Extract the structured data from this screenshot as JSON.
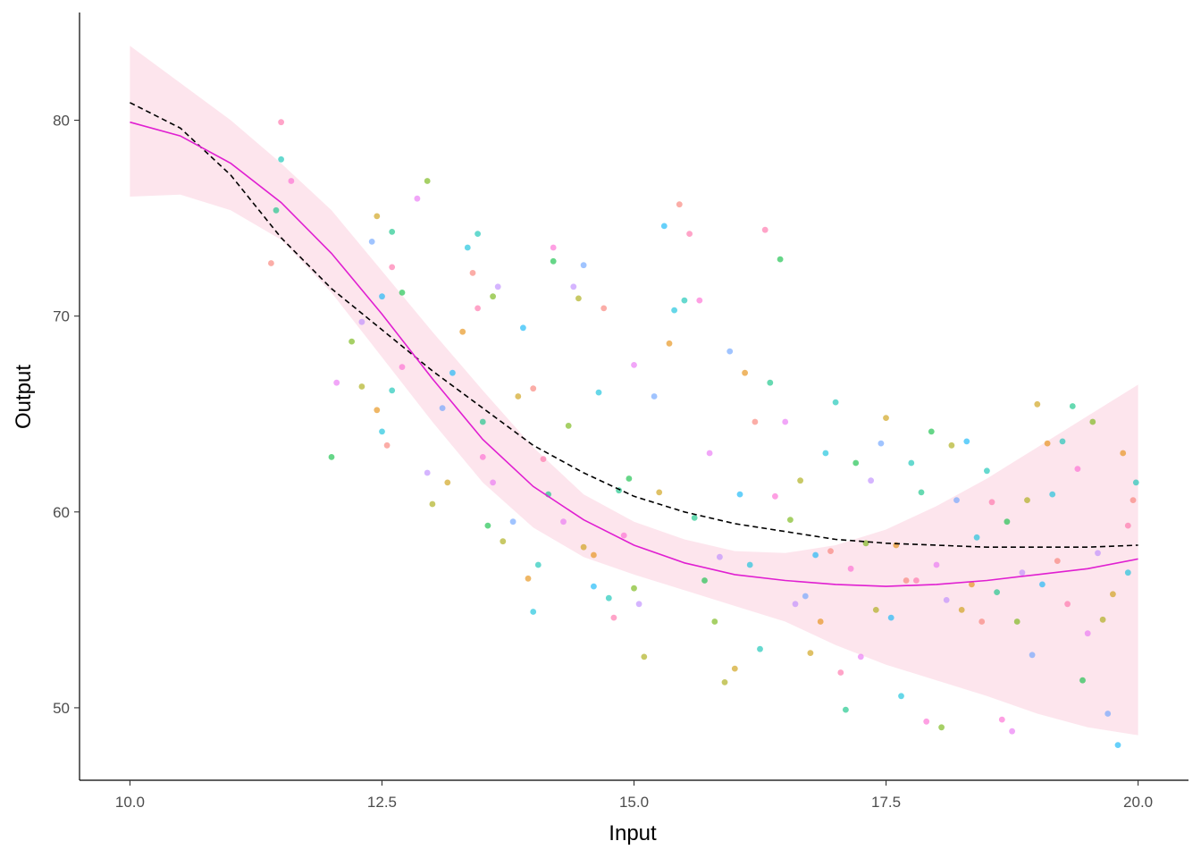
{
  "chart_data": {
    "type": "scatter",
    "title": "",
    "xlabel": "Input",
    "ylabel": "Output",
    "xlim": [
      9.5,
      20.5
    ],
    "ylim": [
      46.3,
      85.5
    ],
    "x_ticks": [
      10.0,
      12.5,
      15.0,
      17.5,
      20.0
    ],
    "x_tick_labels": [
      "10.0",
      "12.5",
      "15.0",
      "17.5",
      "20.0"
    ],
    "y_ticks": [
      50,
      60,
      70,
      80
    ],
    "y_tick_labels": [
      "50",
      "60",
      "70",
      "80"
    ],
    "grid": false,
    "legend": "none",
    "colors": {
      "smooth_line": "#e01fd1",
      "confidence_band": "#fde1ea",
      "reference_line": "#000000",
      "point_palette": [
        "#f8766d",
        "#e58700",
        "#c99800",
        "#a3a500",
        "#6bb100",
        "#00ba38",
        "#00bf7d",
        "#00c0af",
        "#00bcd8",
        "#00b0f6",
        "#619cff",
        "#b983ff",
        "#e76bf3",
        "#fd61d1",
        "#ff67a4"
      ]
    },
    "points_sampled": [
      [
        11.4,
        72.7
      ],
      [
        11.5,
        78.0
      ],
      [
        11.5,
        79.9
      ],
      [
        11.45,
        75.4
      ],
      [
        11.6,
        76.9
      ],
      [
        12.0,
        62.8
      ],
      [
        12.05,
        66.6
      ],
      [
        12.2,
        68.7
      ],
      [
        12.3,
        69.7
      ],
      [
        12.3,
        66.4
      ],
      [
        12.4,
        73.8
      ],
      [
        12.45,
        75.1
      ],
      [
        12.5,
        71.0
      ],
      [
        12.45,
        65.2
      ],
      [
        12.5,
        64.1
      ],
      [
        12.55,
        63.4
      ],
      [
        12.6,
        66.2
      ],
      [
        12.6,
        72.5
      ],
      [
        12.6,
        74.3
      ],
      [
        12.7,
        67.4
      ],
      [
        12.7,
        71.2
      ],
      [
        12.85,
        76.0
      ],
      [
        12.95,
        76.9
      ],
      [
        12.95,
        62.0
      ],
      [
        13.0,
        60.4
      ],
      [
        13.1,
        65.3
      ],
      [
        13.15,
        61.5
      ],
      [
        13.2,
        67.1
      ],
      [
        13.3,
        69.2
      ],
      [
        13.35,
        73.5
      ],
      [
        13.4,
        72.2
      ],
      [
        13.45,
        74.2
      ],
      [
        13.45,
        70.4
      ],
      [
        13.5,
        64.6
      ],
      [
        13.5,
        62.8
      ],
      [
        13.55,
        59.3
      ],
      [
        13.6,
        61.5
      ],
      [
        13.6,
        71.0
      ],
      [
        13.65,
        71.5
      ],
      [
        13.7,
        58.5
      ],
      [
        13.8,
        59.5
      ],
      [
        13.85,
        65.9
      ],
      [
        13.9,
        69.4
      ],
      [
        13.95,
        56.6
      ],
      [
        14.0,
        54.9
      ],
      [
        14.0,
        66.3
      ],
      [
        14.05,
        57.3
      ],
      [
        14.1,
        62.7
      ],
      [
        14.15,
        60.9
      ],
      [
        14.2,
        73.5
      ],
      [
        14.2,
        72.8
      ],
      [
        14.3,
        59.5
      ],
      [
        14.35,
        64.4
      ],
      [
        14.4,
        71.5
      ],
      [
        14.45,
        70.9
      ],
      [
        14.5,
        72.6
      ],
      [
        14.5,
        58.2
      ],
      [
        14.6,
        56.2
      ],
      [
        14.6,
        57.8
      ],
      [
        14.65,
        66.1
      ],
      [
        14.7,
        70.4
      ],
      [
        14.75,
        55.6
      ],
      [
        14.8,
        54.6
      ],
      [
        14.85,
        61.1
      ],
      [
        14.9,
        58.8
      ],
      [
        14.95,
        61.7
      ],
      [
        15.0,
        67.5
      ],
      [
        15.0,
        56.1
      ],
      [
        15.05,
        55.3
      ],
      [
        15.1,
        52.6
      ],
      [
        15.2,
        65.9
      ],
      [
        15.25,
        61.0
      ],
      [
        15.3,
        74.6
      ],
      [
        15.35,
        68.6
      ],
      [
        15.4,
        70.3
      ],
      [
        15.45,
        75.7
      ],
      [
        15.5,
        70.8
      ],
      [
        15.55,
        74.2
      ],
      [
        15.6,
        59.7
      ],
      [
        15.65,
        70.8
      ],
      [
        15.7,
        56.5
      ],
      [
        15.75,
        63.0
      ],
      [
        15.8,
        54.4
      ],
      [
        15.85,
        57.7
      ],
      [
        15.9,
        51.3
      ],
      [
        15.95,
        68.2
      ],
      [
        16.0,
        52.0
      ],
      [
        16.05,
        60.9
      ],
      [
        16.1,
        67.1
      ],
      [
        16.15,
        57.3
      ],
      [
        16.2,
        64.6
      ],
      [
        16.25,
        53.0
      ],
      [
        16.3,
        74.4
      ],
      [
        16.35,
        66.6
      ],
      [
        16.4,
        60.8
      ],
      [
        16.45,
        72.9
      ],
      [
        16.5,
        64.6
      ],
      [
        16.55,
        59.6
      ],
      [
        16.6,
        55.3
      ],
      [
        16.65,
        61.6
      ],
      [
        16.7,
        55.7
      ],
      [
        16.75,
        52.8
      ],
      [
        16.8,
        57.8
      ],
      [
        16.85,
        54.4
      ],
      [
        16.9,
        63.0
      ],
      [
        16.95,
        58.0
      ],
      [
        17.0,
        65.6
      ],
      [
        17.05,
        51.8
      ],
      [
        17.1,
        49.9
      ],
      [
        17.15,
        57.1
      ],
      [
        17.2,
        62.5
      ],
      [
        17.25,
        52.6
      ],
      [
        17.3,
        58.4
      ],
      [
        17.35,
        61.6
      ],
      [
        17.4,
        55.0
      ],
      [
        17.45,
        63.5
      ],
      [
        17.5,
        64.8
      ],
      [
        17.55,
        54.6
      ],
      [
        17.6,
        58.3
      ],
      [
        17.65,
        50.6
      ],
      [
        17.7,
        56.5
      ],
      [
        17.75,
        62.5
      ],
      [
        17.8,
        56.5
      ],
      [
        17.85,
        61.0
      ],
      [
        17.9,
        49.3
      ],
      [
        17.95,
        64.1
      ],
      [
        18.0,
        57.3
      ],
      [
        18.05,
        49.0
      ],
      [
        18.1,
        55.5
      ],
      [
        18.15,
        63.4
      ],
      [
        18.2,
        60.6
      ],
      [
        18.25,
        55.0
      ],
      [
        18.3,
        63.6
      ],
      [
        18.35,
        56.3
      ],
      [
        18.4,
        58.7
      ],
      [
        18.45,
        54.4
      ],
      [
        18.5,
        62.1
      ],
      [
        18.55,
        60.5
      ],
      [
        18.6,
        55.9
      ],
      [
        18.65,
        49.4
      ],
      [
        18.7,
        59.5
      ],
      [
        18.75,
        48.8
      ],
      [
        18.8,
        54.4
      ],
      [
        18.85,
        56.9
      ],
      [
        18.9,
        60.6
      ],
      [
        18.95,
        52.7
      ],
      [
        19.0,
        65.5
      ],
      [
        19.05,
        56.3
      ],
      [
        19.1,
        63.5
      ],
      [
        19.15,
        60.9
      ],
      [
        19.2,
        57.5
      ],
      [
        19.25,
        63.6
      ],
      [
        19.3,
        55.3
      ],
      [
        19.35,
        65.4
      ],
      [
        19.4,
        62.2
      ],
      [
        19.45,
        51.4
      ],
      [
        19.5,
        53.8
      ],
      [
        19.55,
        64.6
      ],
      [
        19.6,
        57.9
      ],
      [
        19.65,
        54.5
      ],
      [
        19.7,
        49.7
      ],
      [
        19.75,
        55.8
      ],
      [
        19.8,
        48.1
      ],
      [
        19.85,
        63.0
      ],
      [
        19.9,
        56.9
      ],
      [
        19.95,
        60.6
      ],
      [
        19.98,
        61.5
      ],
      [
        19.9,
        59.3
      ]
    ],
    "smooth_line": {
      "x": [
        10.0,
        10.5,
        11.0,
        11.5,
        12.0,
        12.5,
        13.0,
        13.5,
        14.0,
        14.5,
        15.0,
        15.5,
        16.0,
        16.5,
        17.0,
        17.5,
        18.0,
        18.5,
        19.0,
        19.5,
        20.0
      ],
      "y": [
        79.9,
        79.2,
        77.8,
        75.8,
        73.2,
        70.1,
        66.8,
        63.7,
        61.3,
        59.6,
        58.3,
        57.4,
        56.8,
        56.5,
        56.3,
        56.2,
        56.3,
        56.5,
        56.8,
        57.1,
        57.6
      ]
    },
    "confidence_band": {
      "x": [
        10.0,
        10.5,
        11.0,
        11.5,
        12.0,
        12.5,
        13.0,
        13.5,
        14.0,
        14.5,
        15.0,
        15.5,
        16.0,
        16.5,
        17.0,
        17.5,
        18.0,
        18.5,
        19.0,
        19.5,
        20.0
      ],
      "upper": [
        83.8,
        81.9,
        80.0,
        77.8,
        75.4,
        72.3,
        69.2,
        66.2,
        63.3,
        60.9,
        59.5,
        58.6,
        58.0,
        57.9,
        58.3,
        59.1,
        60.3,
        61.7,
        63.3,
        64.9,
        66.5
      ],
      "lower": [
        76.1,
        76.2,
        75.4,
        73.9,
        71.2,
        67.9,
        64.6,
        61.5,
        59.2,
        57.7,
        56.8,
        56.0,
        55.2,
        54.4,
        53.2,
        52.2,
        51.4,
        50.6,
        49.7,
        49.0,
        48.6
      ]
    },
    "reference_line": {
      "x": [
        10.0,
        10.5,
        11.0,
        11.5,
        12.0,
        12.5,
        13.0,
        13.5,
        14.0,
        14.5,
        15.0,
        15.5,
        16.0,
        16.5,
        17.0,
        17.5,
        18.0,
        18.5,
        19.0,
        19.5,
        20.0
      ],
      "y": [
        80.9,
        79.6,
        77.2,
        74.0,
        71.4,
        69.3,
        67.2,
        65.3,
        63.4,
        62.0,
        60.8,
        60.0,
        59.4,
        59.0,
        58.6,
        58.4,
        58.3,
        58.2,
        58.2,
        58.2,
        58.3
      ]
    }
  }
}
